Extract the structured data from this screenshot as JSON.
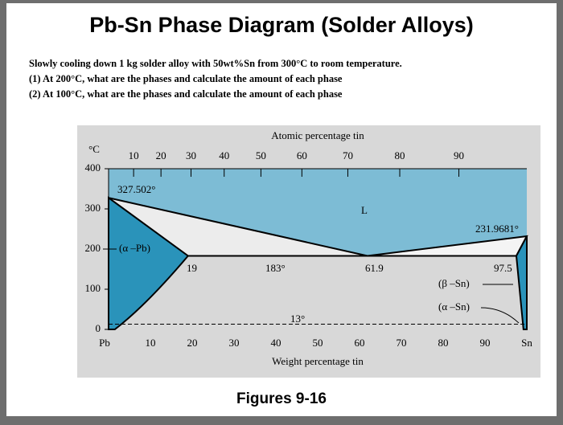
{
  "header": {
    "title": "Pb-Sn Phase Diagram (Solder Alloys)"
  },
  "problem": {
    "lines": [
      "Slowly cooling down 1 kg solder alloy with 50wt%Sn from 300°C to room temperature.",
      "(1)  At 200°C, what are the phases and calculate the amount of each phase",
      "(2) At 100°C, what are the phases and calculate the amount of each phase"
    ]
  },
  "diagram": {
    "top_axis_title": "Atomic percentage tin",
    "top_ticks": [
      10,
      20,
      30,
      40,
      50,
      60,
      70,
      80,
      90
    ],
    "left_unit": "°C",
    "left_ticks": [
      400,
      300,
      200,
      100,
      0
    ],
    "bottom_ticks": [
      "Pb",
      10,
      20,
      30,
      40,
      50,
      60,
      70,
      80,
      90,
      "Sn"
    ],
    "bottom_axis_title": "Weight percentage tin",
    "labels": {
      "pb_melt": "327.502°",
      "liquid": "L",
      "sn_melt": "231.9681°",
      "alpha_pb": "(α –Pb)",
      "alpha_limit": "19",
      "eutectic_temp": "183°",
      "eutectic_comp": "61.9",
      "beta_limit": "97.5",
      "beta_sn": "(β –Sn)",
      "alpha_sn": "(α –Sn)",
      "transition": "13°"
    }
  },
  "caption": "Figures 9-16"
}
